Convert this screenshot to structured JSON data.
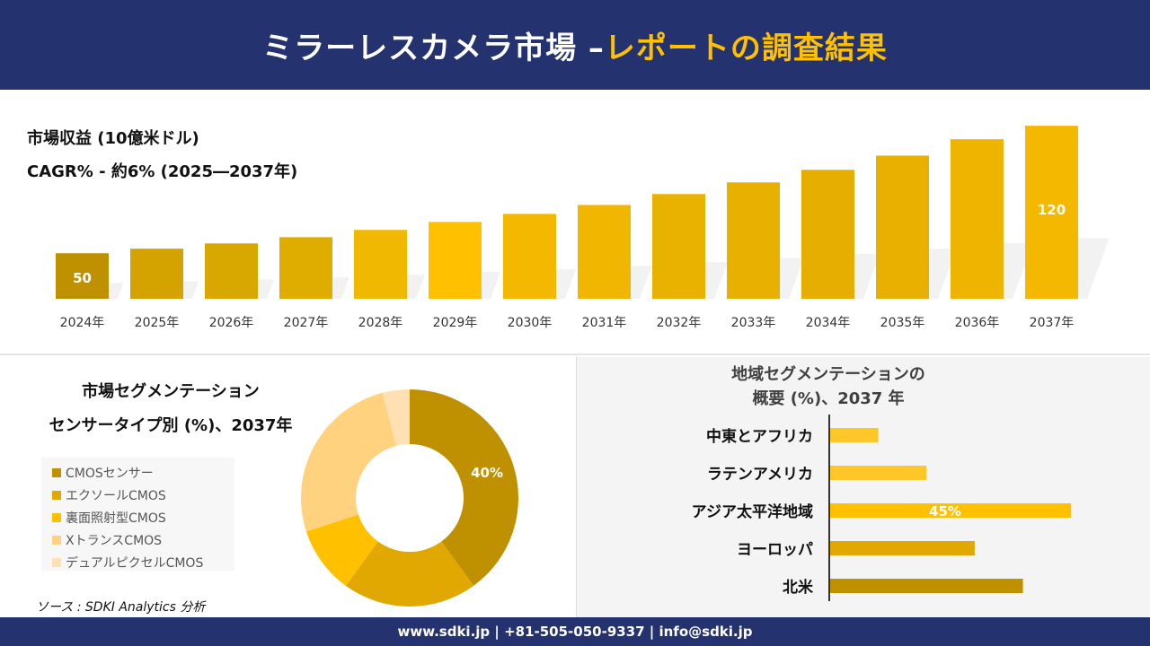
{
  "header": {
    "title_main": "ミラーレスカメラ市場 –",
    "title_accent": "レポートの調査結果"
  },
  "revenue": {
    "title": "市場収益 (10億米ドル)",
    "cagr": "CAGR% - 約6% (2025―2037年)"
  },
  "chart_data": [
    {
      "type": "bar",
      "categories": [
        "2024年",
        "2025年",
        "2026年",
        "2027年",
        "2028年",
        "2029年",
        "2030年",
        "2031年",
        "2032年",
        "2033年",
        "2034年",
        "2035年",
        "2036年",
        "2037年"
      ],
      "values": [
        50,
        52.5,
        55.4,
        58.8,
        62.8,
        67.2,
        71.6,
        76.5,
        82.5,
        88.9,
        95.8,
        103.6,
        112.6,
        120
      ],
      "data_labels": {
        "0": "50",
        "13": "120"
      },
      "colors": [
        "#bf9000",
        "#d4a300",
        "#d9a800",
        "#dfac00",
        "#f0b800",
        "#ffc000",
        "#f5b800",
        "#f0b600",
        "#eab200",
        "#e8b000",
        "#e6ae00",
        "#e9b000",
        "#eeb400",
        "#f4b800"
      ],
      "grid": false,
      "ylim": [
        25,
        125
      ]
    },
    {
      "type": "pie",
      "title": "市場セグメンテーション センサータイプ別 (%)、2037年",
      "title_lines": [
        "市場セグメンテーション",
        "センサータイプ別 (%)、2037年"
      ],
      "categories": [
        "CMOSセンサー",
        "エクソールCMOS",
        "裏面照射型CMOS",
        "XトランスCMOS",
        "デュアルピクセルCMOS"
      ],
      "values": [
        40,
        20,
        10,
        26,
        4
      ],
      "data_labels": {
        "0": "40%"
      },
      "colors": [
        "#bf9000",
        "#e0a800",
        "#ffc000",
        "#ffd27f",
        "#ffe0b3"
      ],
      "legend": "left"
    },
    {
      "type": "bar",
      "orientation": "horizontal",
      "title_lines": [
        "地域セグメンテーションの",
        "概要 (%)、2037 年"
      ],
      "categories": [
        "中東とアフリカ",
        "ラテンアメリカ",
        "アジア太平洋地域",
        "ヨーロッパ",
        "北米"
      ],
      "values": [
        9,
        18,
        45,
        27,
        36
      ],
      "data_labels": {
        "2": "45%"
      },
      "colors": [
        "#ffc629",
        "#ffc629",
        "#ffc000",
        "#e0a800",
        "#bf9000"
      ]
    }
  ],
  "source": "ソース : SDKI Analytics 分析",
  "footer": "www.sdki.jp | +81-505-050-9337 | info@sdki.jp"
}
